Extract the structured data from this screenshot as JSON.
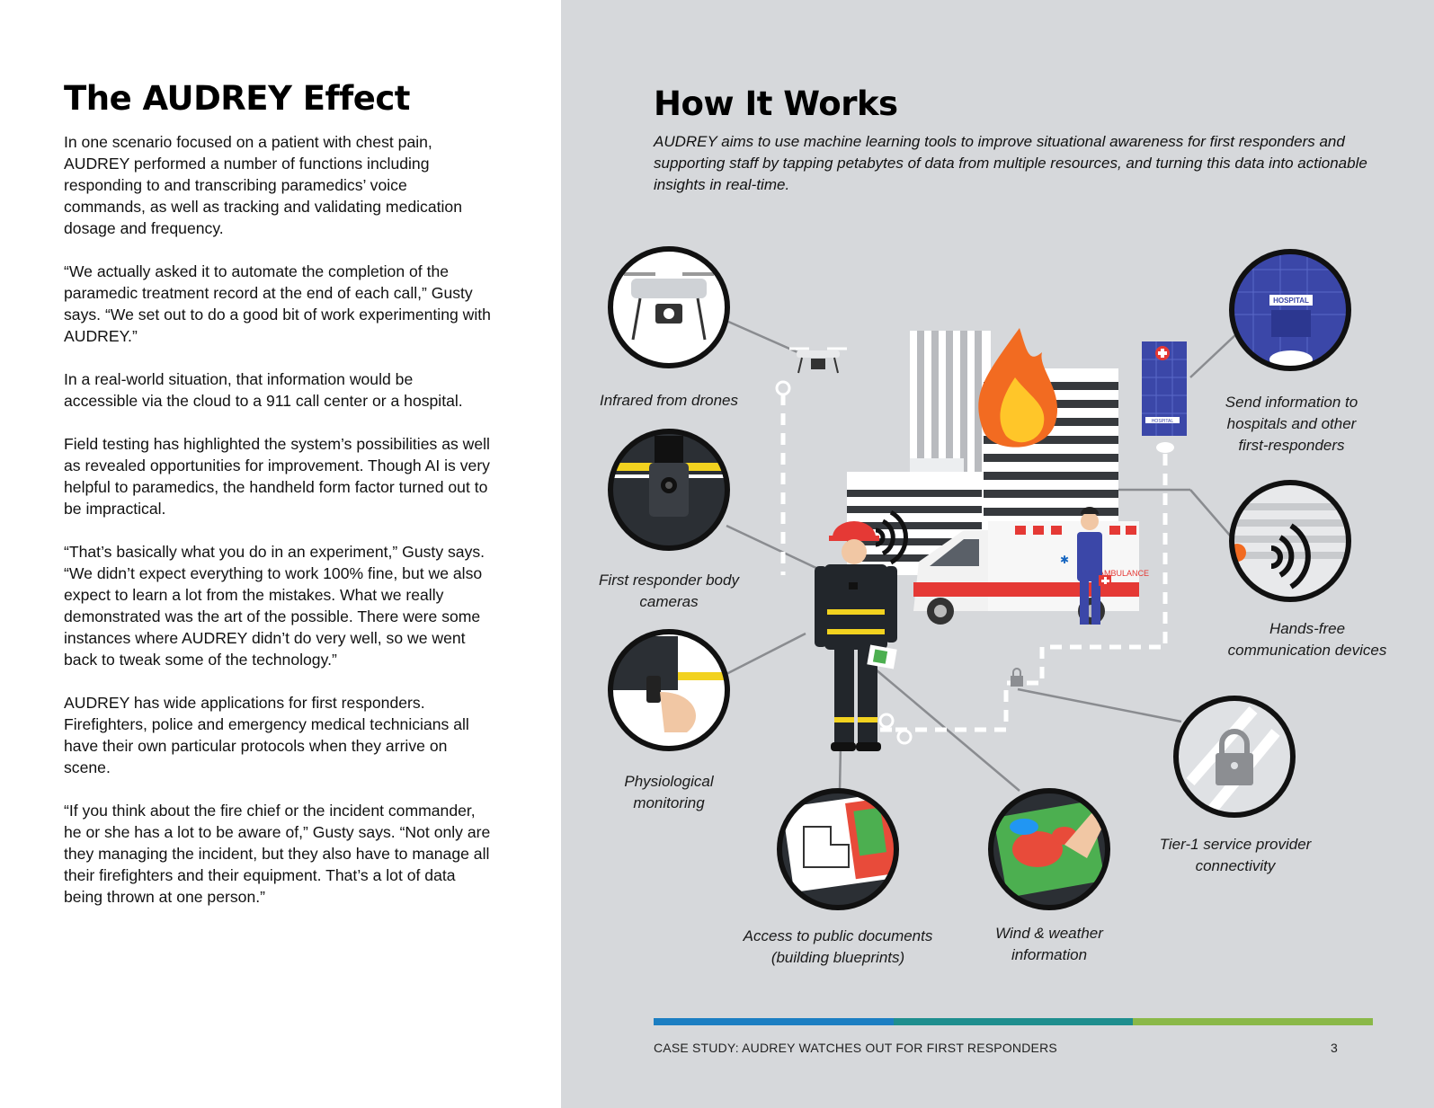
{
  "left": {
    "title": "The AUDREY Effect",
    "paragraphs": [
      "In one scenario focused on a patient with chest pain, AUDREY performed a number of functions including responding to and transcribing paramedics’ voice commands, as well as tracking and validating medication dosage and frequency.",
      "“We actually asked it to automate the completion of the paramedic treatment record at the end of each call,” Gusty says. “We set out to do a good bit of work experimenting with AUDREY.”",
      "In a real-world situation, that information would be accessible via the cloud to a 911 call center or a hospital.",
      "Field testing has highlighted the system’s possibilities as well as revealed opportunities for improvement. Though AI is very helpful to paramedics, the handheld form factor turned out to be impractical.",
      "“That’s basically what you do in an experiment,” Gusty says. “We didn’t expect everything to work 100% fine, but we also expect to learn a lot from the mistakes. What we really demonstrated was the art of the possible. There were some instances where AUDREY didn’t do very well, so we went back to tweak some of the technology.”",
      "AUDREY has wide applications for first responders. Firefighters, police and emergency medical technicians all have their own particular protocols when they arrive on scene.",
      "“If you think about the fire chief or the incident commander, he or she has a lot to be aware of,” Gusty says. “Not only are they managing the incident, but they also have to manage all their firefighters and their equipment. That’s a lot of data being thrown at one person.”"
    ]
  },
  "right": {
    "title": "How It Works",
    "intro": "AUDREY aims to use machine learning tools to improve situational awareness for first responders and supporting staff by tapping petabytes of data from multiple resources, and turning this data into actionable insights in real-time.",
    "captions": {
      "drones": "Infrared from drones",
      "cameras": "First responder body\ncameras",
      "physio": "Physiological\nmonitoring",
      "documents": "Access to public documents\n(building blueprints)",
      "weather": "Wind & weather\ninformation",
      "tier1": "Tier-1 service provider\nconnectivity",
      "handsfree": "Hands-free\ncommunication devices",
      "hospitals": "Send information to\nhospitals and other\nfirst-responders"
    },
    "scene_labels": {
      "hospital_sign": "HOSPITAL",
      "hospital_small_sign": "HOSPITAL",
      "ambulance_text": "AMBULANCE"
    }
  },
  "footer": {
    "text": "CASE STUDY: AUDREY WATCHES OUT FOR FIRST RESPONDERS",
    "page": "3",
    "colors": [
      "#1b7ec2",
      "#1e8e8e",
      "#8ab848"
    ]
  },
  "colors": {
    "panel_bg": "#d6d8db",
    "ring": "#111111",
    "fire_orange": "#f26b21",
    "fire_yellow": "#ffc629",
    "hospital_blue": "#3b47a8",
    "responder_yellow": "#f2d21f"
  }
}
